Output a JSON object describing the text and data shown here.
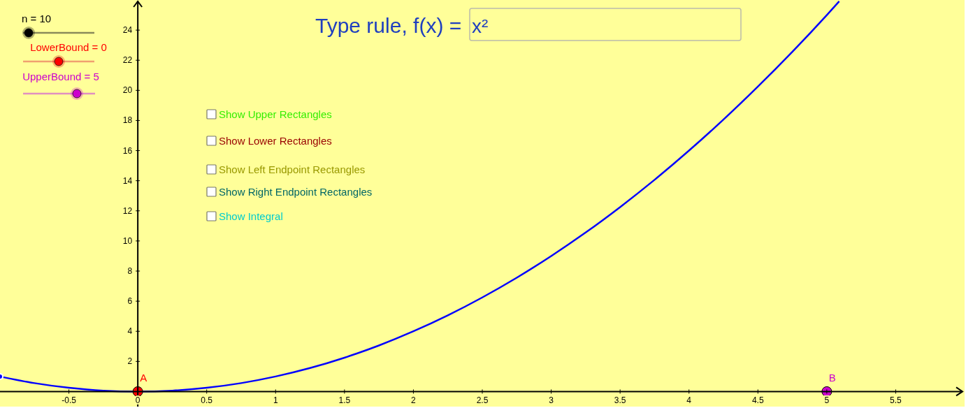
{
  "chart_data": {
    "type": "line",
    "title": "Type rule, f(x) =",
    "xlim": [
      -1,
      6
    ],
    "xticks": [
      -0.5,
      0,
      0.5,
      1,
      1.5,
      2,
      2.5,
      3,
      3.5,
      4,
      4.5,
      5,
      5.5
    ],
    "ylim": [
      -1,
      26
    ],
    "yticks": [
      2,
      4,
      6,
      8,
      10,
      12,
      14,
      16,
      18,
      20,
      22,
      24
    ],
    "grid": false,
    "series": [
      {
        "color": "#0000ff",
        "x": [
          -1,
          -0.75,
          -0.5,
          -0.25,
          0,
          0.25,
          0.5,
          0.75,
          1,
          1.25,
          1.5,
          1.75,
          2,
          2.25,
          2.5,
          2.75,
          3,
          3.25,
          3.5,
          3.75,
          4,
          4.25,
          4.5,
          4.75,
          5,
          5.09
        ],
        "values": [
          1,
          0.56,
          0.25,
          0.06,
          0,
          0.06,
          0.25,
          0.56,
          1,
          1.56,
          2.25,
          3.06,
          4,
          5.06,
          6.25,
          7.56,
          9,
          10.56,
          12.25,
          14.06,
          16,
          18.06,
          20.25,
          22.56,
          25,
          25.91
        ]
      },
      {
        "type": "scatter",
        "name": "A",
        "color": "#ff0000",
        "x": [
          0
        ],
        "values": [
          0
        ]
      },
      {
        "type": "scatter",
        "name": "B",
        "color": "#cc00cc",
        "x": [
          5
        ],
        "values": [
          0
        ]
      }
    ],
    "annotations": [
      "n = 10",
      "LowerBound = 0",
      "UpperBound = 5",
      "Show Upper Rectangles",
      "Show Lower Rectangles",
      "Show Left Endpoint Rectangles",
      "Show Right Endpoint Rectangles",
      "Show Integral",
      "x²"
    ]
  }
}
